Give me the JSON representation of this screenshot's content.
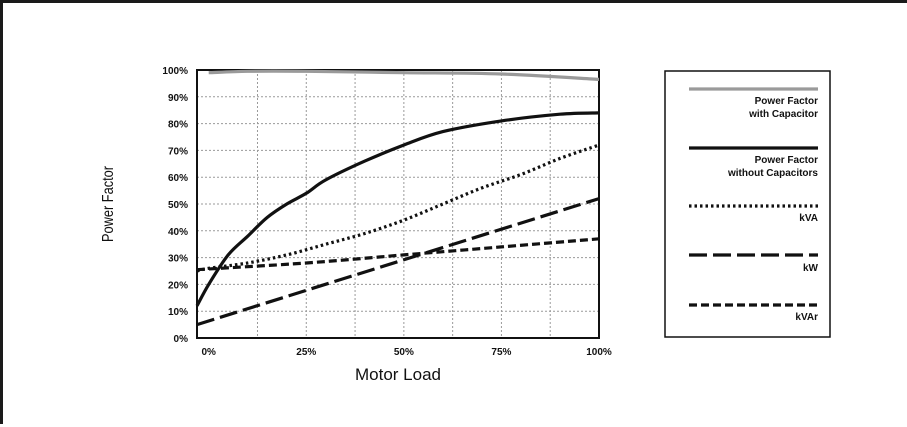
{
  "chart_data": {
    "type": "line",
    "title": "",
    "xlabel": "Motor Load",
    "ylabel": "Power Factor",
    "xlim": [
      0,
      100
    ],
    "ylim": [
      0,
      100
    ],
    "x_tick_labels": [
      "0%",
      "25%",
      "50%",
      "75%",
      "100%"
    ],
    "y_tick_labels": [
      "0%",
      "10%",
      "20%",
      "30%",
      "40%",
      "50%",
      "60%",
      "70%",
      "80%",
      "90%",
      "100%"
    ],
    "grid": true,
    "legend_position": "right",
    "series": [
      {
        "name": "Power Factor with Capacitor",
        "style": "solid",
        "color": "#9a9a9a",
        "x": [
          0,
          10,
          25,
          50,
          75,
          100
        ],
        "y": [
          99,
          99.5,
          99.5,
          99,
          98.5,
          96.5
        ]
      },
      {
        "name": "Power Factor without Capacitors",
        "style": "solid",
        "color": "#111111",
        "x": [
          -3,
          0,
          5,
          10,
          15,
          20,
          25,
          30,
          40,
          50,
          60,
          75,
          90,
          100
        ],
        "y": [
          12,
          20,
          31,
          38,
          45,
          50,
          54,
          59,
          66,
          72,
          77,
          81,
          83.5,
          84
        ]
      },
      {
        "name": "kVA",
        "style": "dotted",
        "color": "#111111",
        "x": [
          -3,
          0,
          10,
          20,
          30,
          40,
          50,
          60,
          70,
          80,
          90,
          100
        ],
        "y": [
          25,
          26,
          28,
          31,
          35,
          39,
          44,
          50,
          56,
          61,
          67,
          72
        ]
      },
      {
        "name": "kW",
        "style": "long-dash",
        "color": "#111111",
        "x": [
          -3,
          100
        ],
        "y": [
          5,
          52
        ]
      },
      {
        "name": "kVAr",
        "style": "dashed",
        "color": "#111111",
        "x": [
          -3,
          25,
          50,
          75,
          100
        ],
        "y": [
          25.5,
          28,
          31,
          34,
          37
        ]
      }
    ]
  }
}
